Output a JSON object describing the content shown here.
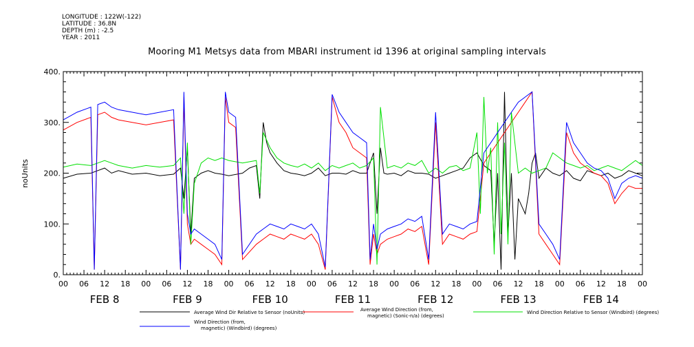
{
  "meta": {
    "longitude": "LONGITUDE : 122W(-122)",
    "latitude": "LATITUDE : 36.8N",
    "depth": "DEPTH (m) : -2.5",
    "year": "YEAR : 2011"
  },
  "chart_data": {
    "type": "line",
    "title": "Mooring M1 Metsys data from MBARI instrument id 1396 at original sampling intervals",
    "ylabel": "noUnits",
    "xlabel": "",
    "ylim": [
      0,
      400
    ],
    "y_ticks": [
      "0.",
      "100.",
      "200.",
      "300.",
      "400."
    ],
    "x_hour_ticks": [
      "00",
      "06",
      "12",
      "18",
      "00",
      "06",
      "12",
      "18",
      "00",
      "06",
      "12",
      "18",
      "00",
      "06",
      "12",
      "18",
      "00",
      "06",
      "12",
      "18",
      "00",
      "06",
      "12",
      "18",
      "00",
      "06",
      "12",
      "18",
      "00"
    ],
    "day_labels": [
      "FEB  8",
      "FEB  9",
      "FEB 10",
      "FEB 11",
      "FEB 12",
      "FEB 13",
      "FEB 14"
    ],
    "x_range_hours": [
      0,
      168
    ],
    "grid": false,
    "legend_placement": "bottom",
    "series": [
      {
        "name": "Average Wind Dir Relative to Sensor (noUnits)",
        "color": "#000000",
        "x": [
          0,
          4,
          8,
          10,
          12,
          14,
          16,
          20,
          24,
          28,
          32,
          34,
          35,
          36,
          37,
          38,
          40,
          42,
          44,
          46,
          48,
          52,
          54,
          56,
          57,
          58,
          59,
          60,
          62,
          64,
          66,
          68,
          70,
          72,
          74,
          76,
          78,
          80,
          82,
          84,
          86,
          88,
          90,
          91,
          92,
          93,
          94,
          96,
          98,
          100,
          102,
          104,
          106,
          108,
          110,
          112,
          114,
          116,
          118,
          120,
          122,
          124,
          125,
          126,
          127,
          128,
          129,
          130,
          131,
          132,
          134,
          135,
          136,
          137,
          138,
          140,
          142,
          144,
          146,
          148,
          150,
          152,
          154,
          156,
          158,
          160,
          162,
          164,
          166,
          168
        ],
        "y": [
          190,
          198,
          200,
          205,
          210,
          200,
          205,
          198,
          200,
          195,
          198,
          210,
          150,
          250,
          80,
          190,
          200,
          205,
          200,
          198,
          195,
          200,
          210,
          215,
          150,
          300,
          260,
          240,
          220,
          205,
          200,
          198,
          195,
          200,
          210,
          195,
          200,
          200,
          198,
          205,
          200,
          200,
          240,
          120,
          250,
          200,
          198,
          200,
          195,
          205,
          200,
          200,
          198,
          190,
          195,
          200,
          205,
          210,
          230,
          240,
          215,
          205,
          60,
          200,
          10,
          360,
          80,
          200,
          30,
          150,
          120,
          160,
          220,
          240,
          190,
          210,
          200,
          195,
          205,
          190,
          185,
          205,
          200,
          195,
          200,
          190,
          195,
          205,
          200,
          195
        ]
      },
      {
        "name": "Average Wind Direction (from, magnetic) (Sonic-n/a) (degrees)",
        "color": "#ff0000",
        "x": [
          0,
          4,
          8,
          9,
          10,
          12,
          14,
          16,
          20,
          24,
          28,
          32,
          34,
          35,
          36,
          37,
          38,
          40,
          42,
          44,
          46,
          47,
          48,
          50,
          52,
          56,
          58,
          60,
          62,
          64,
          66,
          68,
          70,
          72,
          74,
          76,
          78,
          80,
          82,
          84,
          86,
          88,
          89,
          90,
          91,
          92,
          94,
          96,
          98,
          100,
          102,
          104,
          106,
          108,
          110,
          112,
          114,
          116,
          118,
          120,
          122,
          124,
          126,
          128,
          130,
          132,
          134,
          136,
          138,
          140,
          142,
          144,
          146,
          148,
          150,
          152,
          154,
          156,
          158,
          160,
          162,
          164,
          166,
          168
        ],
        "y": [
          285,
          300,
          310,
          10,
          315,
          320,
          310,
          305,
          300,
          295,
          300,
          305,
          10,
          350,
          100,
          60,
          70,
          60,
          50,
          40,
          20,
          350,
          300,
          290,
          30,
          60,
          70,
          80,
          75,
          70,
          80,
          75,
          70,
          80,
          60,
          10,
          350,
          300,
          280,
          250,
          240,
          230,
          20,
          80,
          40,
          60,
          70,
          75,
          80,
          90,
          85,
          95,
          20,
          300,
          60,
          80,
          75,
          70,
          80,
          85,
          220,
          240,
          260,
          280,
          300,
          320,
          340,
          360,
          80,
          60,
          40,
          20,
          280,
          240,
          220,
          210,
          200,
          195,
          180,
          140,
          160,
          175,
          170,
          170
        ]
      },
      {
        "name": "Wind Direction Relative to Sensor (Windbird) (degrees)",
        "color": "#00e000",
        "x": [
          0,
          4,
          8,
          10,
          12,
          14,
          16,
          20,
          24,
          28,
          32,
          34,
          35,
          36,
          37,
          38,
          40,
          42,
          44,
          46,
          48,
          52,
          56,
          57,
          58,
          60,
          62,
          64,
          66,
          68,
          70,
          72,
          74,
          76,
          78,
          80,
          82,
          84,
          86,
          88,
          90,
          91,
          92,
          94,
          96,
          98,
          100,
          102,
          104,
          106,
          108,
          110,
          112,
          114,
          116,
          118,
          120,
          121,
          122,
          123,
          124,
          125,
          126,
          127,
          128,
          129,
          130,
          132,
          134,
          136,
          138,
          140,
          142,
          144,
          146,
          148,
          150,
          152,
          154,
          156,
          158,
          160,
          162,
          164,
          166,
          168
        ],
        "y": [
          212,
          218,
          215,
          220,
          225,
          220,
          215,
          210,
          215,
          212,
          215,
          230,
          120,
          260,
          60,
          180,
          220,
          230,
          225,
          230,
          225,
          220,
          225,
          160,
          280,
          250,
          230,
          220,
          215,
          212,
          218,
          210,
          220,
          205,
          215,
          210,
          215,
          220,
          210,
          215,
          230,
          20,
          330,
          210,
          215,
          210,
          220,
          215,
          225,
          200,
          210,
          200,
          212,
          215,
          205,
          210,
          280,
          120,
          350,
          200,
          250,
          40,
          300,
          80,
          260,
          60,
          320,
          200,
          210,
          200,
          205,
          210,
          240,
          230,
          220,
          215,
          210,
          215,
          205,
          210,
          215,
          210,
          205,
          215,
          225,
          215
        ]
      },
      {
        "name": "Wind Direction (from, magnetic) (Windbird) (degrees)",
        "color": "#0000ff",
        "x": [
          0,
          4,
          8,
          9,
          10,
          12,
          14,
          16,
          20,
          24,
          28,
          32,
          34,
          35,
          36,
          37,
          38,
          40,
          42,
          44,
          46,
          47,
          48,
          50,
          52,
          56,
          58,
          60,
          62,
          64,
          66,
          68,
          70,
          72,
          74,
          76,
          78,
          80,
          82,
          84,
          86,
          88,
          89,
          90,
          91,
          92,
          94,
          96,
          98,
          100,
          102,
          104,
          106,
          108,
          110,
          112,
          114,
          116,
          118,
          120,
          122,
          124,
          126,
          128,
          130,
          132,
          134,
          136,
          138,
          140,
          142,
          144,
          146,
          148,
          150,
          152,
          154,
          156,
          158,
          160,
          162,
          164,
          166,
          168
        ],
        "y": [
          305,
          320,
          330,
          10,
          335,
          340,
          330,
          325,
          320,
          315,
          320,
          325,
          10,
          360,
          120,
          80,
          90,
          80,
          70,
          60,
          30,
          360,
          320,
          310,
          40,
          80,
          90,
          100,
          95,
          90,
          100,
          95,
          90,
          100,
          80,
          15,
          355,
          320,
          300,
          280,
          270,
          260,
          30,
          100,
          50,
          80,
          90,
          95,
          100,
          110,
          105,
          115,
          30,
          320,
          80,
          100,
          95,
          90,
          100,
          105,
          240,
          260,
          280,
          300,
          320,
          340,
          350,
          360,
          100,
          80,
          60,
          30,
          300,
          260,
          240,
          220,
          210,
          205,
          190,
          150,
          180,
          190,
          195,
          190
        ]
      }
    ]
  }
}
